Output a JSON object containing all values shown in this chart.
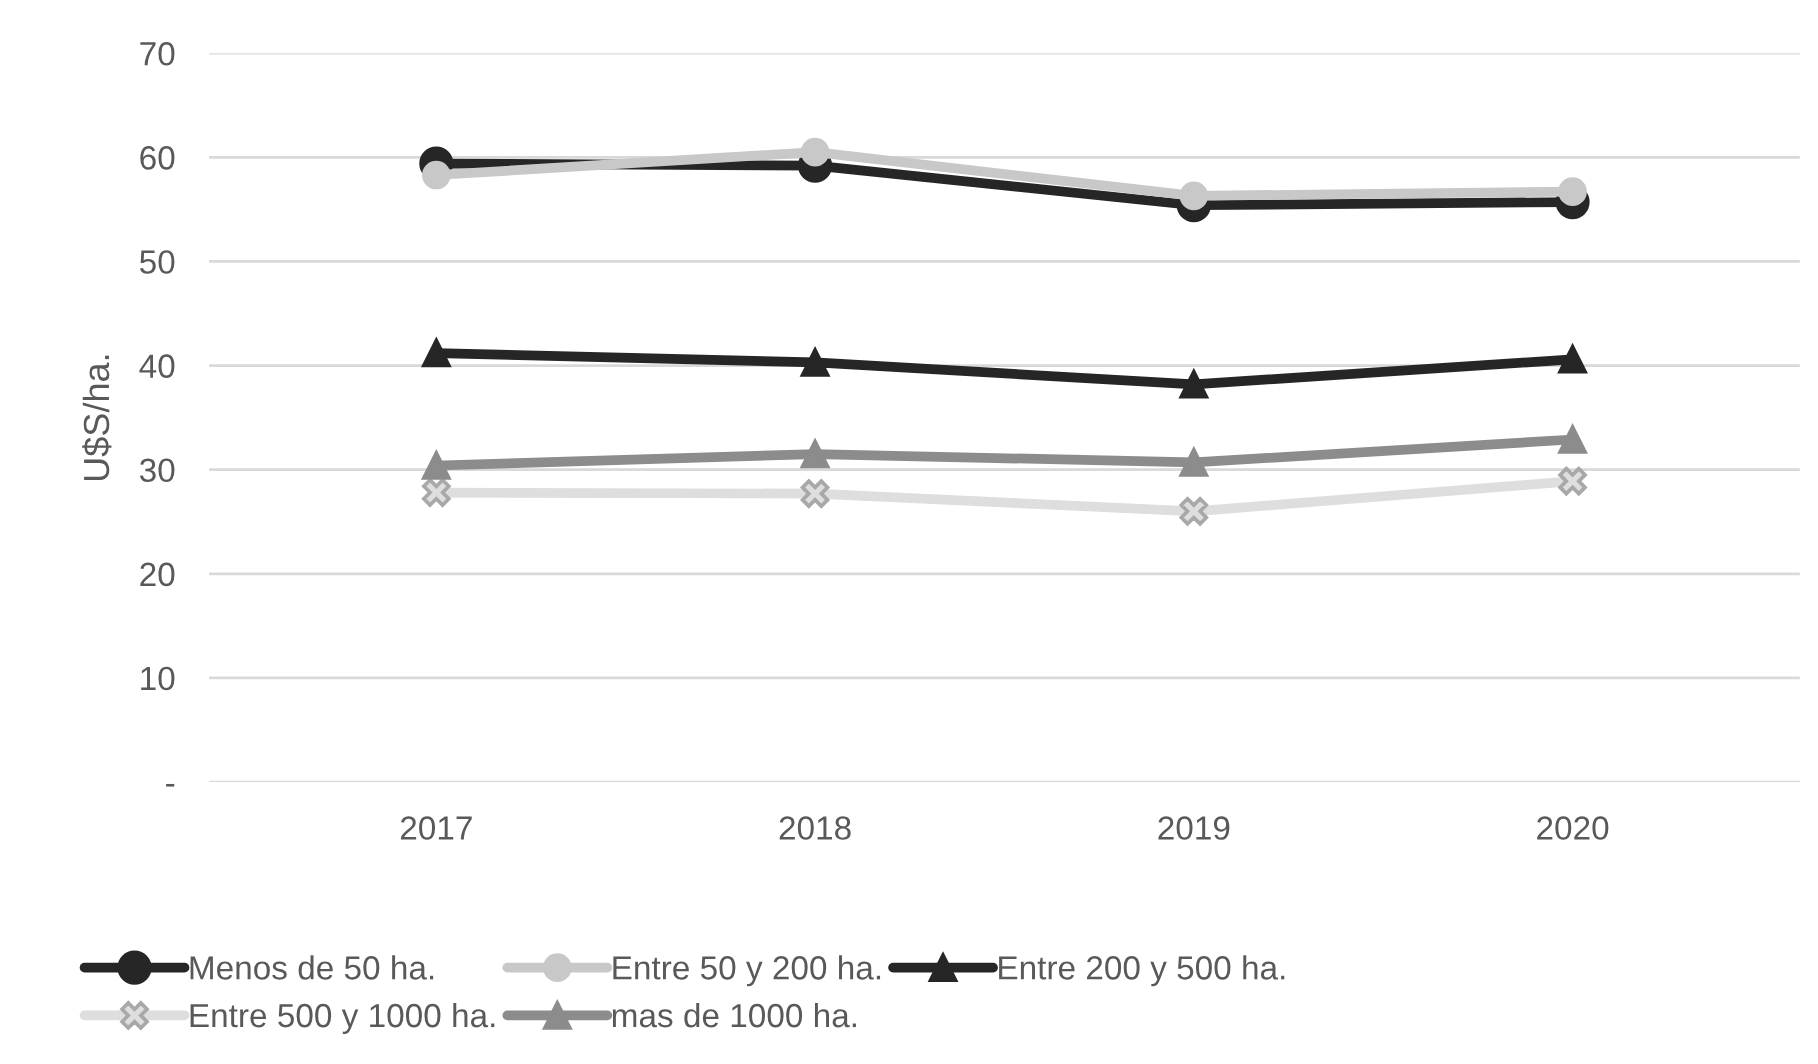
{
  "chart_data": {
    "type": "line",
    "ylabel": "U$S/ha.",
    "categories": [
      "2017",
      "2018",
      "2019",
      "2020"
    ],
    "series": [
      {
        "name": "Menos de 50 ha.",
        "color": "#262626",
        "marker": "circle",
        "values": [
          59.4,
          59.2,
          55.4,
          55.7
        ]
      },
      {
        "name": "Entre 50 y 200 ha.",
        "color": "#c8c8c8",
        "marker": "circle",
        "values": [
          58.3,
          60.5,
          56.3,
          56.7
        ]
      },
      {
        "name": "Entre 200 y 500 ha.",
        "color": "#262626",
        "marker": "triangle",
        "values": [
          41.2,
          40.3,
          38.2,
          40.6
        ]
      },
      {
        "name": "Entre 500 y 1000 ha.",
        "color": "#dedede",
        "marker": "cross",
        "values": [
          27.8,
          27.7,
          26.0,
          28.9
        ]
      },
      {
        "name": "mas de 1000 ha.",
        "color": "#8c8c8c",
        "marker": "triangle",
        "values": [
          30.4,
          31.5,
          30.7,
          32.9
        ]
      }
    ],
    "ylim": [
      0,
      70
    ],
    "yticks": [
      {
        "value": 0,
        "label": "-"
      },
      10,
      20,
      30,
      40,
      50,
      60,
      70
    ],
    "grid": "y",
    "legend": "bottom",
    "line_style": "solid"
  }
}
